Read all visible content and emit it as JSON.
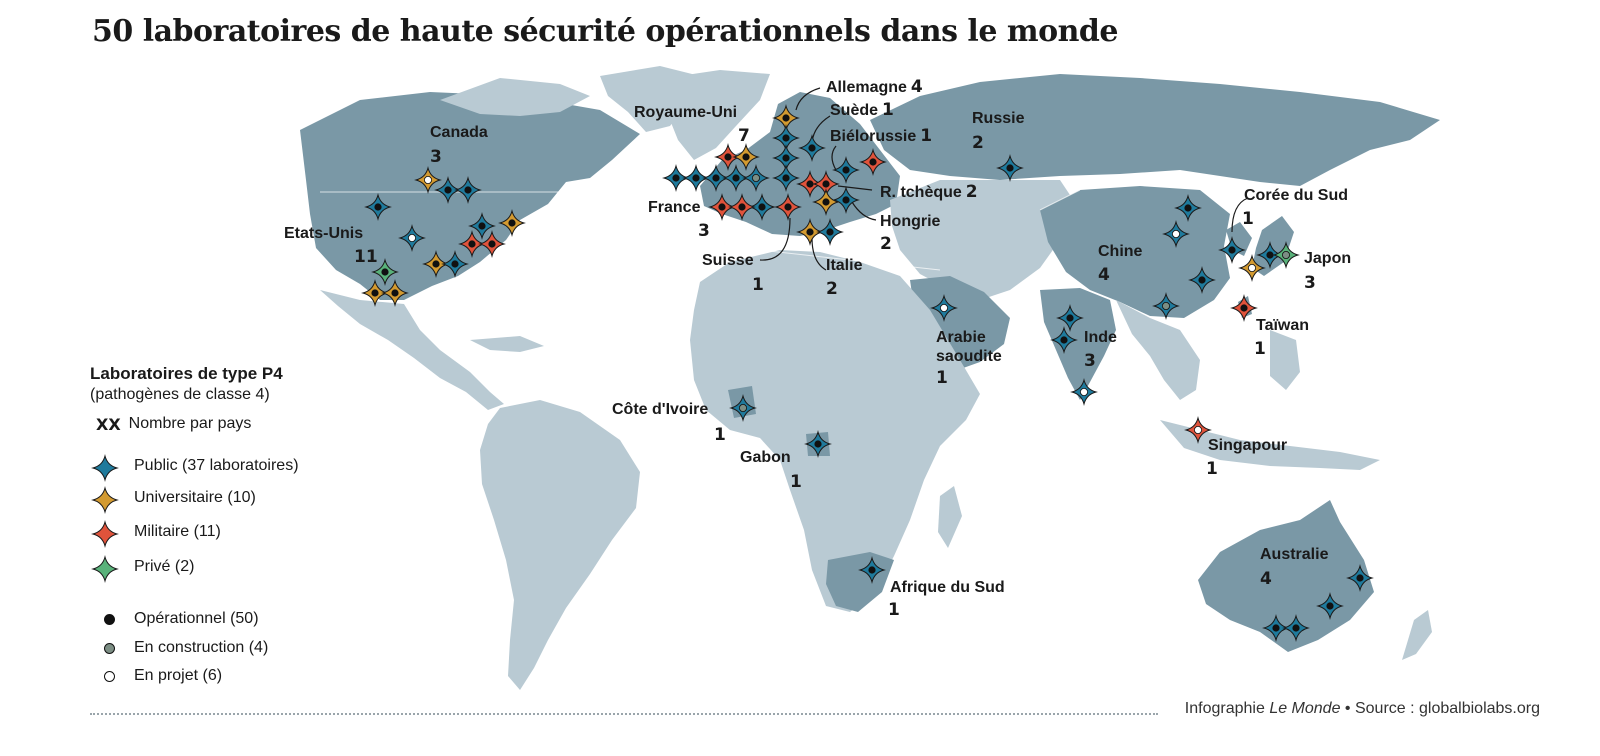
{
  "title": "50 laboratoires de haute sécurité opérationnels dans le monde",
  "colors": {
    "public": "#1f7a9c",
    "universitaire": "#d39a30",
    "militaire": "#e0533b",
    "prive": "#59b27a",
    "operationnel": "#111111",
    "en_construction": "#7c8e84",
    "en_projet": "#ffffff",
    "land_light": "#b9cad3",
    "land_dark": "#7a98a6"
  },
  "legend": {
    "title": "Laboratoires de type P4",
    "subtitle": "(pathogènes de classe 4)",
    "count_symbol": "XX",
    "count_label": "Nombre par pays",
    "types": [
      {
        "key": "public",
        "label": "Public (37 laboratoires)"
      },
      {
        "key": "universitaire",
        "label": "Universitaire (10)"
      },
      {
        "key": "militaire",
        "label": "Militaire (11)"
      },
      {
        "key": "prive",
        "label": "Privé (2)"
      }
    ],
    "statuses": [
      {
        "key": "operationnel",
        "label": "Opérationnel (50)"
      },
      {
        "key": "en_construction",
        "label": "En construction (4)"
      },
      {
        "key": "en_projet",
        "label": "En projet (6)"
      }
    ]
  },
  "countries": [
    {
      "name": "Canada",
      "count": "3"
    },
    {
      "name": "Etats-Unis",
      "count": "11"
    },
    {
      "name": "Royaume-Uni",
      "count": "7"
    },
    {
      "name": "Allemagne",
      "count": "4"
    },
    {
      "name": "Suède",
      "count": "1"
    },
    {
      "name": "Biélorussie",
      "count": "1"
    },
    {
      "name": "Russie",
      "count": "2"
    },
    {
      "name": "R. tchèque",
      "count": "2"
    },
    {
      "name": "Hongrie",
      "count": "2"
    },
    {
      "name": "France",
      "count": "3"
    },
    {
      "name": "Suisse",
      "count": "1"
    },
    {
      "name": "Italie",
      "count": "2"
    },
    {
      "name": "Corée du Sud",
      "count": "1"
    },
    {
      "name": "Chine",
      "count": "4"
    },
    {
      "name": "Japon",
      "count": "3"
    },
    {
      "name": "Taïwan",
      "count": "1"
    },
    {
      "name": "Inde",
      "count": "3"
    },
    {
      "name": "Arabie saoudite",
      "count": "1"
    },
    {
      "name": "Côte d'Ivoire",
      "count": "1"
    },
    {
      "name": "Gabon",
      "count": "1"
    },
    {
      "name": "Singapour",
      "count": "1"
    },
    {
      "name": "Australie",
      "count": "4"
    },
    {
      "name": "Afrique du Sud",
      "count": "1"
    }
  ],
  "footer": {
    "credit_prefix": "Infographie ",
    "credit_brand": "Le Monde",
    "separator": " • ",
    "source": "Source : globalbiolabs.org"
  }
}
